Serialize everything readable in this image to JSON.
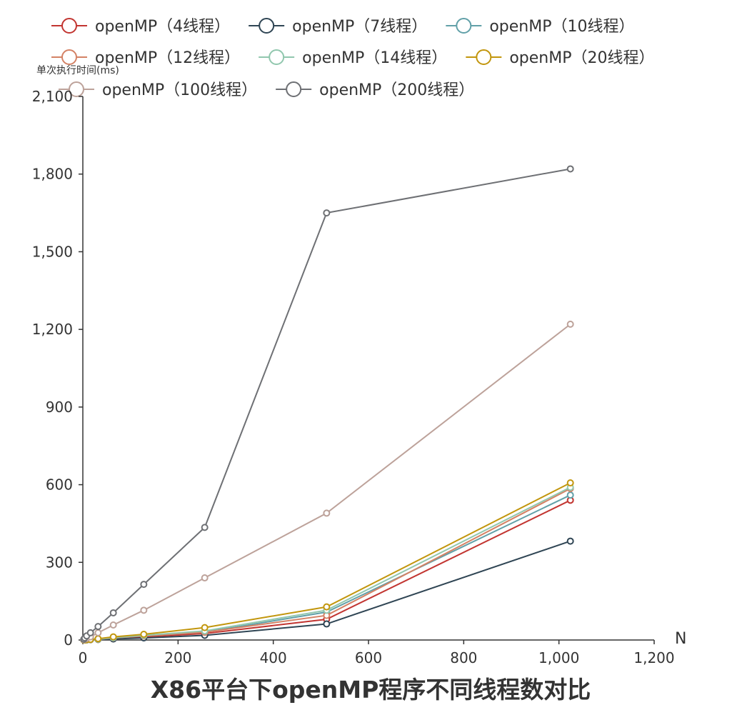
{
  "chart_data": {
    "type": "line",
    "title": "X86平台下openMP程序不同线程数对比",
    "xlabel": "N",
    "ylabel": "单次执行时间(ms)",
    "xlim": [
      0,
      1200
    ],
    "ylim": [
      0,
      2100
    ],
    "xticks": [
      "0",
      "200",
      "400",
      "600",
      "800",
      "1,000",
      "1,200"
    ],
    "yticks": [
      "0",
      "300",
      "600",
      "900",
      "1,200",
      "1,500",
      "1,800",
      "2,100"
    ],
    "x": [
      2,
      4,
      8,
      16,
      32,
      64,
      128,
      256,
      512,
      1024
    ],
    "legend_position": "top",
    "grid": false,
    "series": [
      {
        "name": "openMP（4线程）",
        "color": "#c23531",
        "values": [
          0,
          0,
          0.5,
          1,
          2,
          5,
          12,
          25,
          80,
          540
        ]
      },
      {
        "name": "openMP（7线程）",
        "color": "#2f4554",
        "values": [
          0,
          0,
          0.5,
          1,
          2,
          4,
          8,
          18,
          62,
          382
        ]
      },
      {
        "name": "openMP（10线程）",
        "color": "#61a0a8",
        "values": [
          0,
          0,
          0.5,
          1.5,
          3,
          8,
          16,
          30,
          108,
          560
        ]
      },
      {
        "name": "openMP（12线程）",
        "color": "#d48265",
        "values": [
          0,
          0,
          0.5,
          1.5,
          3,
          8,
          16,
          30,
          95,
          585
        ]
      },
      {
        "name": "openMP（14线程）",
        "color": "#91c7ae",
        "values": [
          0,
          0,
          0.5,
          1.5,
          3,
          9,
          18,
          35,
          115,
          590
        ]
      },
      {
        "name": "openMP（20线程）",
        "color": "#c2960d",
        "values": [
          0,
          0,
          1,
          2,
          5,
          12,
          22,
          48,
          128,
          607
        ]
      },
      {
        "name": "openMP（100线程）",
        "color": "#bda29a",
        "values": [
          1,
          3,
          6,
          12,
          28,
          58,
          115,
          240,
          490,
          1220
        ]
      },
      {
        "name": "openMP（200线程）",
        "color": "#6e7074",
        "values": [
          3,
          8,
          16,
          28,
          52,
          105,
          215,
          435,
          1650,
          1820
        ]
      }
    ]
  }
}
